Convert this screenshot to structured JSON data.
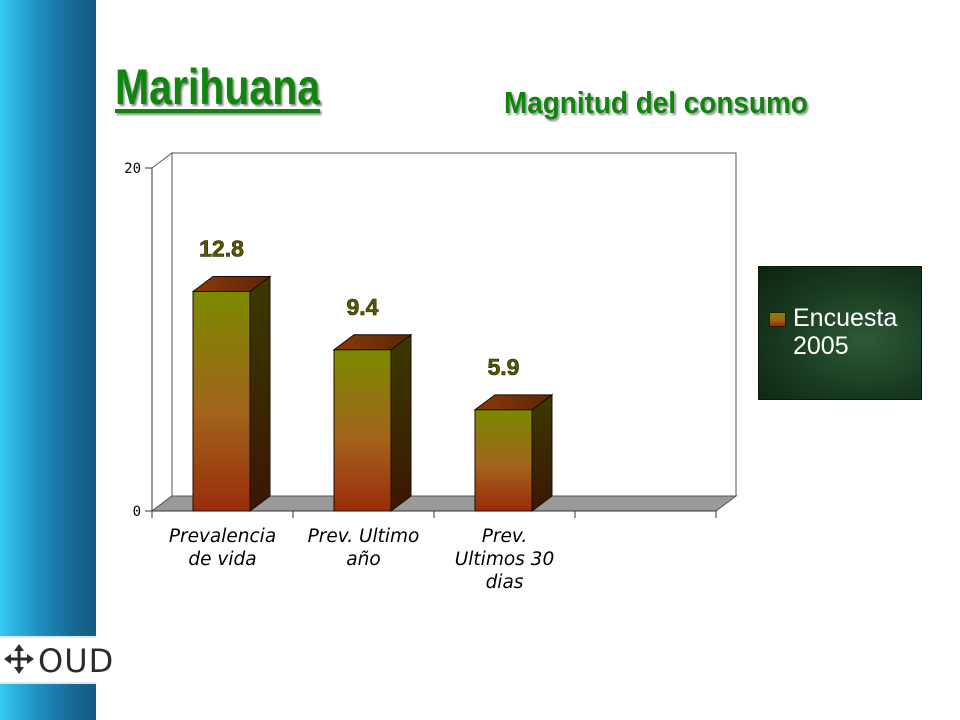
{
  "slide": {
    "title": "Marihuana",
    "subtitle": "Magnitud del consumo"
  },
  "logo": {
    "text": "OUD",
    "icon": "four-arrows-cross-icon"
  },
  "colors": {
    "left_band_top": "#35c9f4",
    "left_band_bottom": "#155a82",
    "title": "#11860f",
    "bar_top": "#7a8a00",
    "bar_bottom": "#9a2c0a",
    "legend_bg": "#183a20"
  },
  "chart_data": {
    "type": "bar",
    "style": "3d",
    "title": "",
    "xlabel": "",
    "ylabel": "",
    "categories": [
      "Prevalencia de vida",
      "Prev. Ultimo año",
      "Prev. Ultimos 30 dias"
    ],
    "category_lines": [
      [
        "Prevalencia",
        "de vida"
      ],
      [
        "Prev. Ultimo",
        "año"
      ],
      [
        "Prev.",
        "Ultimos 30",
        "dias"
      ]
    ],
    "series": [
      {
        "name": "Encuesta 2005",
        "values": [
          12.8,
          9.4,
          5.9
        ]
      }
    ],
    "data_labels": [
      "12.8",
      "9.4",
      "5.9"
    ],
    "ylim": [
      0,
      20
    ],
    "yticks": [
      0,
      20
    ],
    "empty_category_slots": 1,
    "legend": {
      "position": "right",
      "entries": [
        "Encuesta 2005"
      ]
    },
    "grid": false
  }
}
